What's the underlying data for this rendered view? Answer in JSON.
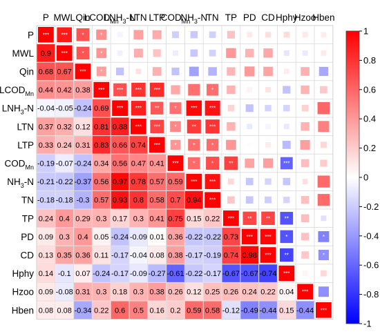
{
  "chart_data": {
    "type": "heatmap",
    "variables": [
      "P",
      "MWL",
      "Qin",
      "LCOD_Mn",
      "LNH3-N",
      "LTN",
      "LTP",
      "COD_Mn",
      "NH3-N",
      "TN",
      "TP",
      "PD",
      "CD",
      "Hphy",
      "Hzoo",
      "Hben"
    ],
    "display_labels": {
      "P": {
        "base": "P",
        "sub": ""
      },
      "MWL": {
        "base": "MWL",
        "sub": ""
      },
      "Qin": {
        "base": "Qin",
        "sub": ""
      },
      "LCOD_Mn": {
        "base": "LCOD",
        "sub": "Mn"
      },
      "LNH3-N": {
        "base": "LNH",
        "sub": "3",
        "tail": "-N"
      },
      "LTN": {
        "base": "LTN",
        "sub": ""
      },
      "LTP": {
        "base": "LTP",
        "sub": ""
      },
      "COD_Mn": {
        "base": "COD",
        "sub": "Mn"
      },
      "NH3-N": {
        "base": "NH",
        "sub": "3",
        "tail": "-N"
      },
      "TN": {
        "base": "TN",
        "sub": ""
      },
      "TP": {
        "base": "TP",
        "sub": ""
      },
      "PD": {
        "base": "PD",
        "sub": ""
      },
      "CD": {
        "base": "CD",
        "sub": ""
      },
      "Hphy": {
        "base": "Hphy",
        "sub": ""
      },
      "Hzoo": {
        "base": "Hzoo",
        "sub": ""
      },
      "Hben": {
        "base": "Hben",
        "sub": ""
      }
    },
    "lower": [
      [],
      [
        0.9
      ],
      [
        0.68,
        0.67
      ],
      [
        0.44,
        0.42,
        0.38
      ],
      [
        -0.04,
        -0.05,
        -0.24,
        0.69
      ],
      [
        0.37,
        0.32,
        0.12,
        0.81,
        0.88
      ],
      [
        0.33,
        0.24,
        0.31,
        0.83,
        0.66,
        0.74
      ],
      [
        -0.19,
        -0.07,
        -0.24,
        0.34,
        0.56,
        0.47,
        0.41
      ],
      [
        -0.21,
        -0.22,
        -0.37,
        0.56,
        0.97,
        0.78,
        0.57,
        0.59
      ],
      [
        -0.18,
        -0.18,
        -0.3,
        0.57,
        0.93,
        0.8,
        0.58,
        0.7,
        0.94
      ],
      [
        0.24,
        0.4,
        0.29,
        0.3,
        0.17,
        0.3,
        0.41,
        0.75,
        0.15,
        0.22
      ],
      [
        0.09,
        0.3,
        0.4,
        0.05,
        -0.24,
        -0.09,
        0.01,
        0.36,
        -0.22,
        -0.22,
        0.73
      ],
      [
        0.13,
        0.35,
        0.36,
        0.11,
        -0.17,
        -0.04,
        0.08,
        0.38,
        -0.17,
        -0.19,
        0.74,
        0.98
      ],
      [
        0.14,
        -0.1,
        0.07,
        -0.24,
        -0.17,
        -0.09,
        -0.27,
        -0.61,
        -0.22,
        -0.17,
        -0.67,
        -0.67,
        -0.74
      ],
      [
        0.09,
        -0.08,
        0.31,
        0.3,
        0.18,
        0.3,
        0.38,
        0.26,
        0.12,
        0.25,
        0.26,
        0.24,
        0.22,
        0.04
      ],
      [
        0.08,
        0.08,
        -0.34,
        0.22,
        0.6,
        0.5,
        0.16,
        0.2,
        0.59,
        0.58,
        -0.12,
        -0.49,
        -0.44,
        0.15,
        -0.44
      ]
    ],
    "upper_marks": [
      [
        "***",
        "***",
        "*",
        "*",
        "",
        "",
        "",
        "",
        "",
        "",
        "",
        "",
        "",
        "",
        "",
        ""
      ],
      [
        "",
        "***",
        "*",
        "*",
        "",
        "",
        "",
        "",
        "",
        "",
        "",
        "",
        "",
        "",
        "",
        ""
      ],
      [
        "",
        "",
        "***",
        "*",
        "",
        "",
        "",
        "",
        "",
        "",
        "",
        "",
        "",
        "",
        "",
        ""
      ],
      [
        "",
        "",
        "",
        "***",
        "***",
        "***",
        "***",
        "",
        "",
        "*",
        "",
        "",
        "",
        "",
        "",
        ""
      ],
      [
        "",
        "",
        "",
        "",
        "***",
        "***",
        "**",
        "*",
        "***",
        "***",
        "",
        "",
        "",
        "",
        "",
        ""
      ],
      [
        "",
        "",
        "",
        "",
        "",
        "***",
        "***",
        "*",
        "**",
        "***",
        "",
        "",
        "",
        "",
        "",
        ""
      ],
      [
        "",
        "",
        "",
        "",
        "",
        "",
        "***",
        "*",
        "*",
        "*",
        "",
        "",
        "",
        "",
        "",
        ""
      ],
      [
        "",
        "",
        "",
        "",
        "",
        "",
        "",
        "***",
        "*",
        "*",
        "**",
        "",
        "",
        "***",
        "",
        ""
      ],
      [
        "",
        "",
        "",
        "",
        "",
        "",
        "",
        "",
        "***",
        "***",
        "",
        "",
        "",
        "",
        "",
        ""
      ],
      [
        "",
        "",
        "",
        "",
        "",
        "",
        "",
        "",
        "",
        "***",
        "",
        "",
        "",
        "",
        "",
        ""
      ],
      [
        "",
        "",
        "",
        "",
        "",
        "",
        "",
        "",
        "",
        "",
        "***",
        "**",
        "**",
        "**",
        "",
        ""
      ],
      [
        "",
        "",
        "",
        "",
        "",
        "",
        "",
        "",
        "",
        "",
        "",
        "***",
        "***",
        "*",
        "",
        "*"
      ],
      [
        "",
        "",
        "",
        "",
        "",
        "",
        "",
        "",
        "",
        "",
        "",
        "",
        "***",
        "**",
        "",
        "*"
      ],
      [
        "",
        "",
        "",
        "",
        "",
        "",
        "",
        "",
        "",
        "",
        "",
        "",
        "",
        "***",
        "",
        ""
      ],
      [
        "",
        "",
        "",
        "",
        "",
        "",
        "",
        "",
        "",
        "",
        "",
        "",
        "",
        "",
        "***",
        ""
      ],
      [
        "",
        "",
        "",
        "",
        "",
        "",
        "",
        "",
        "",
        "",
        "",
        "",
        "",
        "",
        "",
        "***"
      ]
    ],
    "diagonal_value": 1,
    "colorbar": {
      "range": [
        -1,
        1
      ],
      "ticks": [
        "1",
        "0.8",
        "0.6",
        "0.4",
        "0.2",
        "0",
        "-0.2",
        "-0.4",
        "-0.6",
        "-0.8",
        "-1"
      ],
      "colors": {
        "negative": "#0000ff",
        "middle": "#ffffff",
        "positive": "#ff0000"
      }
    }
  }
}
